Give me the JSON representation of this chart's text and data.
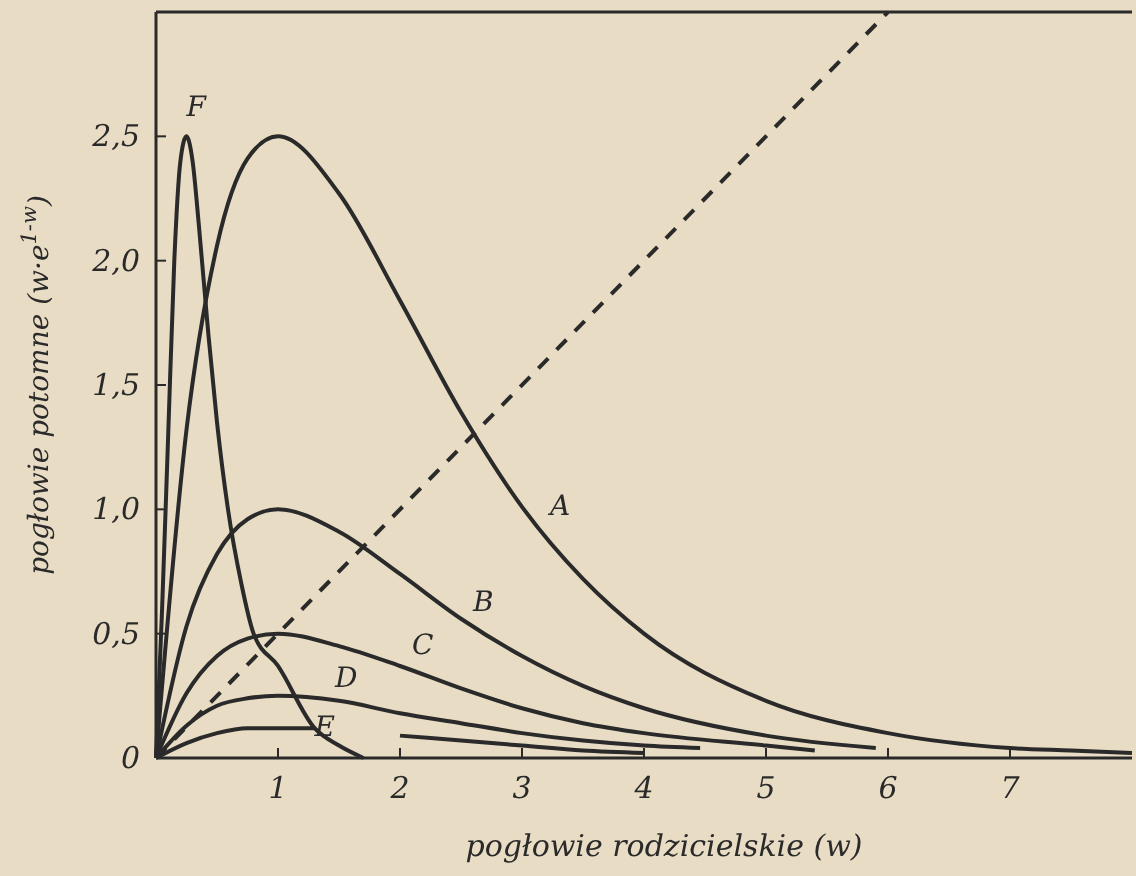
{
  "chart_data": {
    "type": "line",
    "xlabel": "pogłowie rodzicielskie (w)",
    "ylabel": "pogłowie potomne (w·e$^{1-w}$)",
    "xlim": [
      0,
      8
    ],
    "ylim": [
      0,
      3
    ],
    "xticks": [
      1,
      2,
      3,
      4,
      5,
      6,
      7
    ],
    "yticks": [
      0,
      {
        "value": 0.5,
        "label": "0,5"
      },
      {
        "value": 1,
        "label": "1,0"
      },
      {
        "value": 1.5,
        "label": "1,5"
      },
      {
        "value": 2,
        "label": "2,0"
      },
      {
        "value": 2.5,
        "label": "2,5"
      }
    ],
    "grid": false,
    "marker": "none",
    "series": [
      {
        "name": "A",
        "color": "#2a2a2a",
        "x": [
          0,
          0.25,
          0.5,
          0.75,
          1,
          1.5,
          2,
          2.5,
          3,
          3.5,
          4,
          5,
          6,
          7,
          7.5,
          8
        ],
        "values": [
          0,
          1.32,
          2.06,
          2.41,
          2.5,
          2.27,
          1.84,
          1.39,
          1.01,
          0.72,
          0.5,
          0.23,
          0.1,
          0.04,
          0.03,
          0.02
        ]
      },
      {
        "name": "B",
        "color": "#2a2a2a",
        "x": [
          0,
          0.25,
          0.5,
          0.75,
          1,
          1.5,
          2,
          2.5,
          3,
          3.5,
          4,
          5,
          5.9
        ],
        "values": [
          0,
          0.53,
          0.82,
          0.96,
          1,
          0.91,
          0.74,
          0.56,
          0.41,
          0.29,
          0.2,
          0.09,
          0.04
        ]
      },
      {
        "name": "C",
        "color": "#2a2a2a",
        "x": [
          0,
          0.25,
          0.5,
          0.75,
          1,
          1.5,
          2,
          2.5,
          3,
          3.5,
          4,
          5,
          5.4
        ],
        "values": [
          0,
          0.26,
          0.41,
          0.48,
          0.5,
          0.45,
          0.37,
          0.28,
          0.2,
          0.14,
          0.1,
          0.05,
          0.03
        ]
      },
      {
        "name": "D",
        "color": "#2a2a2a",
        "x": [
          0,
          0.25,
          0.5,
          0.75,
          1,
          1.5,
          2,
          2.5,
          3,
          3.5,
          4,
          4.46
        ],
        "values": [
          0,
          0.13,
          0.21,
          0.24,
          0.25,
          0.23,
          0.18,
          0.14,
          0.1,
          0.07,
          0.05,
          0.04
        ]
      },
      {
        "name": "E",
        "color": "#2a2a2a",
        "x": [
          0,
          0.25,
          0.5,
          0.75,
          1,
          1.3,
          1.6,
          2,
          2.5,
          3,
          3.5,
          4
        ],
        "values": [
          0,
          0.06,
          0.1,
          0.12,
          0.12,
          0.12,
          null,
          0.09,
          0.07,
          0.05,
          0.03,
          0.02
        ]
      },
      {
        "name": "F",
        "color": "#2a2a2a",
        "x": [
          0,
          0.05,
          0.1,
          0.15,
          0.2,
          0.25,
          0.3,
          0.35,
          0.43,
          0.5,
          0.59,
          0.7,
          0.8,
          1,
          1.3,
          1.5,
          1.7
        ],
        "values": [
          0,
          0.6,
          1.3,
          2,
          2.4,
          2.5,
          2.4,
          2.15,
          1.7,
          1.35,
          1,
          0.7,
          0.5,
          0.37,
          0.12,
          0.05,
          0
        ]
      },
      {
        "color": "#2a2a2a",
        "line_style": "dashed",
        "x": [
          0,
          6
        ],
        "values": [
          0,
          3
        ]
      }
    ]
  }
}
